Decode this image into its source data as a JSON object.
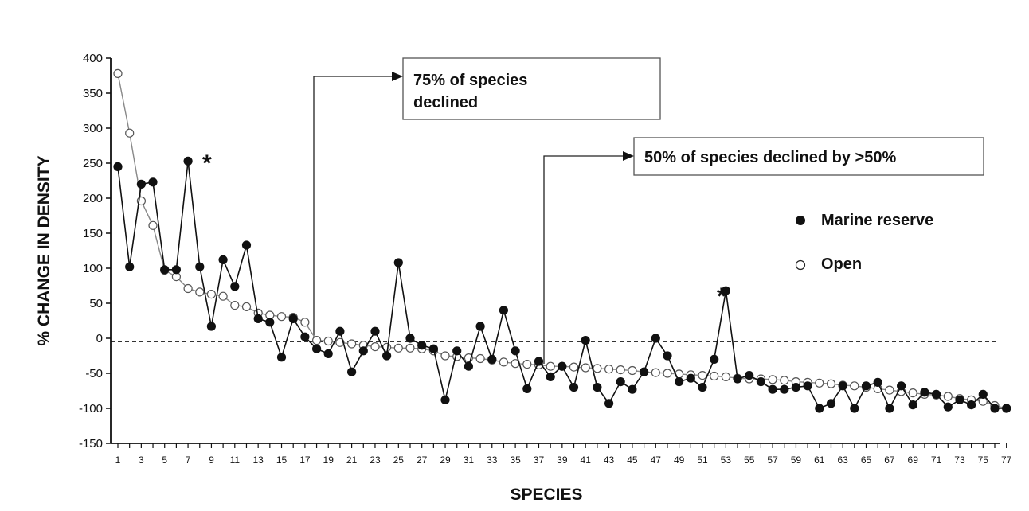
{
  "chart_data": {
    "type": "line",
    "title": "",
    "xlabel": "SPECIES",
    "ylabel": "% CHANGE IN DENSITY",
    "ylim": [
      -150,
      400
    ],
    "yticks": [
      400,
      350,
      300,
      250,
      200,
      150,
      100,
      50,
      0,
      -50,
      -100,
      -150
    ],
    "xlim": [
      0.5,
      77.5
    ],
    "xticks": [
      1,
      3,
      5,
      7,
      9,
      11,
      13,
      15,
      17,
      19,
      21,
      23,
      25,
      27,
      29,
      31,
      33,
      35,
      37,
      39,
      41,
      43,
      45,
      47,
      49,
      51,
      53,
      55,
      57,
      59,
      61,
      63,
      65,
      67,
      69,
      71,
      73,
      75,
      77
    ],
    "reference_line": {
      "y": -5,
      "style": "dashed"
    },
    "series": [
      {
        "name": "Marine reserve",
        "marker": "filled-circle",
        "values": [
          245,
          102,
          220,
          223,
          98,
          98,
          253,
          102,
          17,
          112,
          74,
          133,
          28,
          23,
          -27,
          28,
          2,
          -15,
          -22,
          10,
          -48,
          -18,
          10,
          -25,
          108,
          0,
          -10,
          -15,
          -88,
          -18,
          -40,
          17,
          -30,
          40,
          -18,
          -72,
          -33,
          -55,
          -40,
          -70,
          -3,
          -70,
          -93,
          -62,
          -73,
          -48,
          0,
          -25,
          -62,
          -57,
          -70,
          -30,
          68,
          -58,
          -53,
          -62,
          -73,
          -73,
          -70,
          -68,
          -100,
          -93,
          -68,
          -100,
          -68,
          -63,
          -100,
          -68,
          -95,
          -77,
          -80,
          -98,
          -88,
          -95,
          -80,
          -100,
          -100
        ]
      },
      {
        "name": "Open",
        "marker": "open-circle",
        "values": [
          378,
          293,
          196,
          161,
          97,
          88,
          71,
          66,
          63,
          60,
          47,
          45,
          36,
          33,
          31,
          30,
          23,
          -3,
          -4,
          -6,
          -8,
          -10,
          -12,
          -13,
          -14,
          -14,
          -15,
          -18,
          -25,
          -26,
          -28,
          -29,
          -31,
          -34,
          -36,
          -37,
          -38,
          -40,
          -40,
          -41,
          -42,
          -43,
          -44,
          -45,
          -46,
          -48,
          -49,
          -50,
          -51,
          -52,
          -53,
          -54,
          -55,
          -57,
          -58,
          -58,
          -59,
          -60,
          -62,
          -63,
          -64,
          -65,
          -67,
          -68,
          -70,
          -72,
          -74,
          -76,
          -78,
          -80,
          -81,
          -83,
          -86,
          -88,
          -90,
          -96,
          -100
        ]
      }
    ],
    "legend": {
      "placement": "right",
      "items": [
        {
          "label": "Marine reserve",
          "marker": "filled-circle"
        },
        {
          "label": "Open",
          "marker": "open-circle"
        }
      ]
    },
    "annotations": [
      {
        "text_lines": [
          "75% of species",
          "declined"
        ],
        "species": 18
      },
      {
        "text_lines": [
          "50% of species declined by >50%"
        ],
        "species": 39
      }
    ],
    "asterisks": [
      {
        "text": "*",
        "species": 7
      },
      {
        "text": "*",
        "species": 53
      }
    ]
  }
}
